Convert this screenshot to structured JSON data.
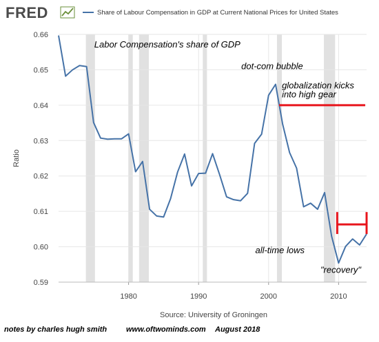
{
  "logo": {
    "text": "FRED"
  },
  "chart_data": {
    "type": "line",
    "title": "Share of Labour Compensation in GDP at Current National Prices for United States",
    "legend": {
      "label": "Share of Labour Compensation in GDP at Current National Prices for United States",
      "position": "top"
    },
    "ylabel": "Ratio",
    "xlabel": "",
    "xlim": [
      1970,
      2014
    ],
    "ylim": [
      0.59,
      0.66
    ],
    "yticks": [
      0.59,
      0.6,
      0.61,
      0.62,
      0.63,
      0.64,
      0.65,
      0.66
    ],
    "ytick_labels": [
      "0.59",
      "0.60",
      "0.61",
      "0.62",
      "0.63",
      "0.64",
      "0.65",
      "0.66"
    ],
    "xticks": [
      1980,
      1990,
      2000,
      2010
    ],
    "xtick_labels": [
      "1980",
      "1990",
      "2000",
      "2010"
    ],
    "grid": true,
    "line_color": "#4572a7",
    "recession_color": "#e1e1e1",
    "recessions": [
      [
        1973.9,
        1975.2
      ],
      [
        1980.0,
        1980.6
      ],
      [
        1981.5,
        1982.9
      ],
      [
        1990.6,
        1991.2
      ],
      [
        2001.2,
        2001.9
      ],
      [
        2007.9,
        2009.5
      ]
    ],
    "series": [
      {
        "name": "Share of Labour Compensation in GDP at Current National Prices for United States",
        "x": [
          1970,
          1971,
          1972,
          1973,
          1974,
          1975,
          1976,
          1977,
          1978,
          1979,
          1980,
          1981,
          1982,
          1983,
          1984,
          1985,
          1986,
          1987,
          1988,
          1989,
          1990,
          1991,
          1992,
          1993,
          1994,
          1995,
          1996,
          1997,
          1998,
          1999,
          2000,
          2001,
          2002,
          2003,
          2004,
          2005,
          2006,
          2007,
          2008,
          2009,
          2010,
          2011,
          2012,
          2013,
          2014
        ],
        "values": [
          0.6597,
          0.6482,
          0.65,
          0.6512,
          0.6509,
          0.6351,
          0.6307,
          0.6304,
          0.6305,
          0.6305,
          0.6319,
          0.6212,
          0.6241,
          0.6106,
          0.6087,
          0.6084,
          0.6136,
          0.6211,
          0.6262,
          0.6172,
          0.6207,
          0.6208,
          0.6263,
          0.6204,
          0.6141,
          0.6133,
          0.613,
          0.6151,
          0.6292,
          0.6318,
          0.6428,
          0.6459,
          0.6347,
          0.6266,
          0.6222,
          0.6113,
          0.6123,
          0.6106,
          0.6153,
          0.603,
          0.5954,
          0.6001,
          0.6022,
          0.6005,
          0.6036
        ]
      }
    ],
    "annotations": [
      {
        "text": "Labor Compensation's share of GDP",
        "x": 1975.1,
        "y": 0.6563
      },
      {
        "text": "dot-com bubble",
        "x": 1996.1,
        "y": 0.6502
      },
      {
        "text": "globalization kicks",
        "x": 2001.9,
        "y": 0.6447
      },
      {
        "text": "into high gear",
        "x": 2001.9,
        "y": 0.6422
      },
      {
        "text": "all-time lows",
        "x": 1998.1,
        "y": 0.5982
      },
      {
        "text": "\"recovery\"",
        "x": 2007.4,
        "y": 0.5926
      }
    ],
    "markers": [
      {
        "type": "hline",
        "x1": 2001.5,
        "x2": 2013.8,
        "y": 0.64,
        "color": "#e8141b"
      },
      {
        "type": "range",
        "x1": 2009.8,
        "x2": 2014.0,
        "y": 0.6063,
        "cap_low": 0.6036,
        "cap_high": 0.6098,
        "color": "#e8141b"
      }
    ]
  },
  "source_text": "Source: University of Groningen",
  "footer": {
    "notes": "notes by charles hugh smith",
    "site": "www.oftwominds.com",
    "date": "August 2018"
  }
}
